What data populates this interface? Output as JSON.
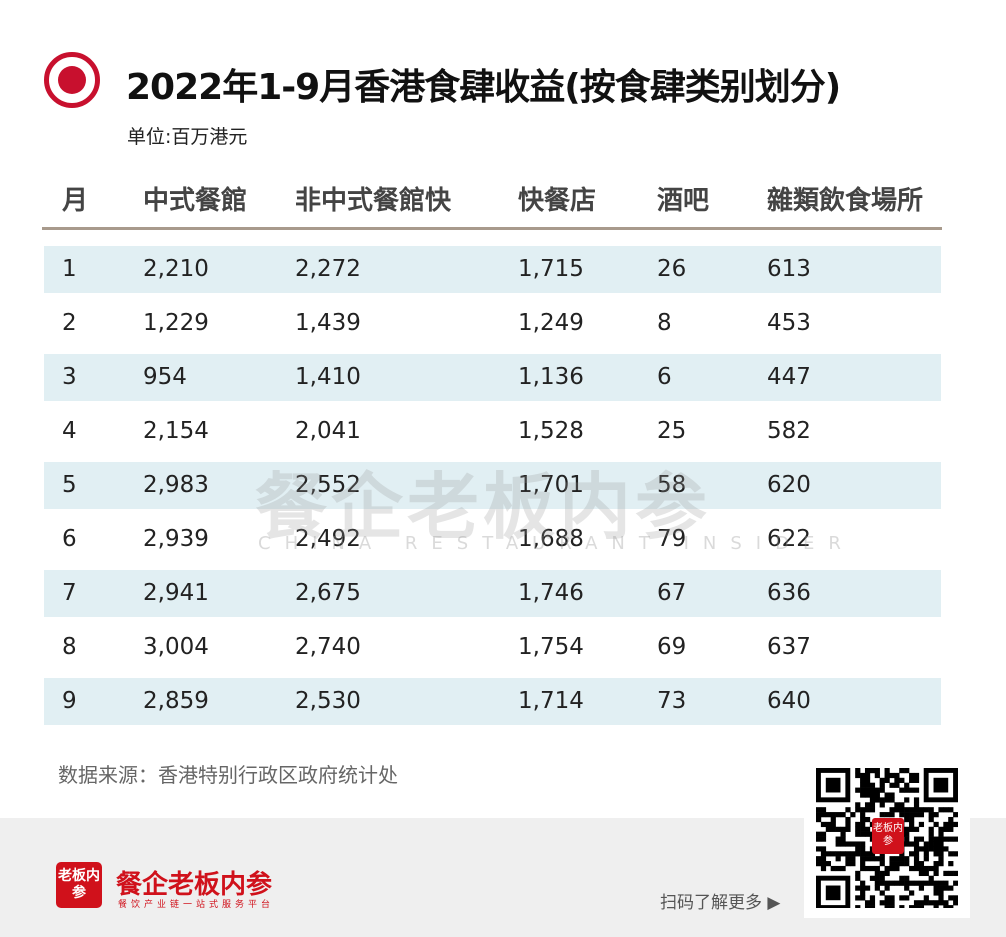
{
  "header": {
    "title": "2022年1-9月香港食肆收益(按食肆类别划分)",
    "unit": "单位:百万港元"
  },
  "chart_data": {
    "type": "table",
    "title": "2022年1-9月香港食肆收益(按食肆类别划分)",
    "unit": "单位:百万港元",
    "columns": [
      "月",
      "中式餐館",
      "非中式餐館快",
      "快餐店",
      "酒吧",
      "雜類飲食場所"
    ],
    "rows": [
      [
        "1",
        "2,210",
        "2,272",
        "1,715",
        "26",
        "613"
      ],
      [
        "2",
        "1,229",
        "1,439",
        "1,249",
        "8",
        "453"
      ],
      [
        "3",
        "954",
        "1,410",
        "1,136",
        "6",
        "447"
      ],
      [
        "4",
        "2,154",
        "2,041",
        "1,528",
        "25",
        "582"
      ],
      [
        "5",
        "2,983",
        "2,552",
        "1,701",
        "58",
        "620"
      ],
      [
        "6",
        "2,939",
        "2,492",
        "1,688",
        "79",
        "622"
      ],
      [
        "7",
        "2,941",
        "2,675",
        "1,746",
        "67",
        "636"
      ],
      [
        "8",
        "3,004",
        "2,740",
        "1,754",
        "69",
        "637"
      ],
      [
        "9",
        "2,859",
        "2,530",
        "1,714",
        "73",
        "640"
      ]
    ]
  },
  "watermark": {
    "cn": "餐企老板内参",
    "en": "CHINA RESTAURANT INSIDER"
  },
  "source": "数据来源：香港特别行政区政府统计处",
  "footer": {
    "brand_icon": "老板内参",
    "brand": "餐企老板内参",
    "tagline": "餐饮产业链一站式服务平台",
    "scan": "扫码了解更多",
    "qr_badge": "老板内参"
  },
  "colors": {
    "accent": "#c8102e",
    "row_shade": "#e1eff3",
    "rule": "#a89a8c"
  }
}
